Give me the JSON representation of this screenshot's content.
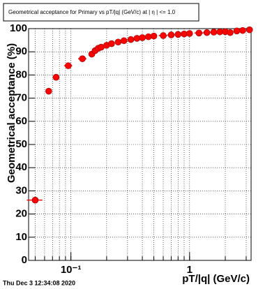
{
  "chart_data": {
    "type": "scatter",
    "title": "Geometrical acceptance for Primary vs pT/|q| (GeV/c) at |  η  | <= 1.0",
    "xlabel": "pT/|q| (GeV/c)",
    "ylabel": "Geometrical acceptance (%)",
    "footer": "Thu Dec  3 12:34:08 2020",
    "x": [
      0.05,
      0.065,
      0.075,
      0.095,
      0.125,
      0.15,
      0.16,
      0.17,
      0.18,
      0.2,
      0.22,
      0.25,
      0.28,
      0.32,
      0.36,
      0.4,
      0.45,
      0.5,
      0.6,
      0.7,
      0.8,
      0.9,
      1.0,
      1.2,
      1.4,
      1.6,
      1.8,
      2.0,
      2.2,
      2.5,
      2.8,
      3.2
    ],
    "xerr": [
      0.0075,
      0.0025,
      0.0025,
      0.0075,
      0.01,
      0.005,
      0.005,
      0.005,
      0.005,
      0.01,
      0.01,
      0.015,
      0.015,
      0.02,
      0.02,
      0.02,
      0.025,
      0.025,
      0.05,
      0.05,
      0.05,
      0.05,
      0.05,
      0.1,
      0.1,
      0.1,
      0.1,
      0.1,
      0.1,
      0.15,
      0.15,
      0.2
    ],
    "values": [
      26,
      73,
      79,
      84,
      87,
      89,
      90.5,
      91.5,
      92,
      92.8,
      93.5,
      94.2,
      94.8,
      95.3,
      95.8,
      96.1,
      96.5,
      96.8,
      97,
      97.3,
      97.5,
      97.7,
      97.9,
      98.1,
      98.3,
      98.5,
      98.6,
      98.7,
      98.3,
      99,
      99.2,
      99.5
    ],
    "color": "#ff0000",
    "xlim": [
      0.044,
      3.3
    ],
    "log_x": true,
    "xticks": [
      {
        "value": 0.1,
        "label": "10⁻¹"
      },
      1
    ],
    "xgrid": [
      0.05,
      0.06,
      0.07,
      0.08,
      0.09,
      0.1,
      0.2,
      0.3,
      0.4,
      0.5,
      0.6,
      0.7,
      0.8,
      0.9,
      1,
      2,
      3
    ],
    "ylim": [
      0,
      100
    ],
    "yticks": [
      0,
      10,
      20,
      30,
      40,
      50,
      60,
      70,
      80,
      90,
      100
    ],
    "grid": true
  }
}
